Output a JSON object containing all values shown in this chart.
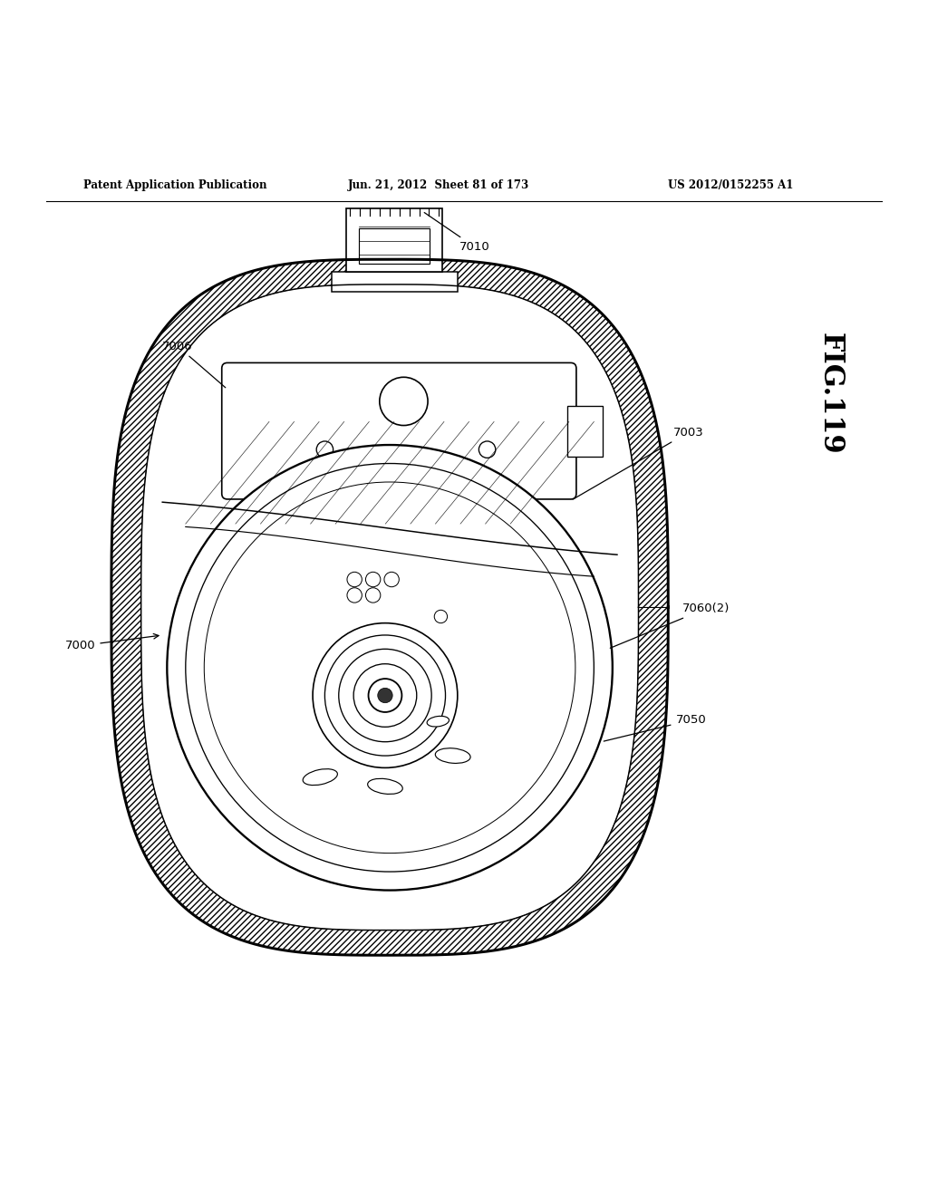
{
  "bg_color": "#ffffff",
  "header_text": "Patent Application Publication",
  "header_date": "Jun. 21, 2012  Sheet 81 of 173",
  "header_patent": "US 2012/0152255 A1",
  "fig_label": "FIG.119",
  "line_color": "#000000",
  "lw": 1.2
}
